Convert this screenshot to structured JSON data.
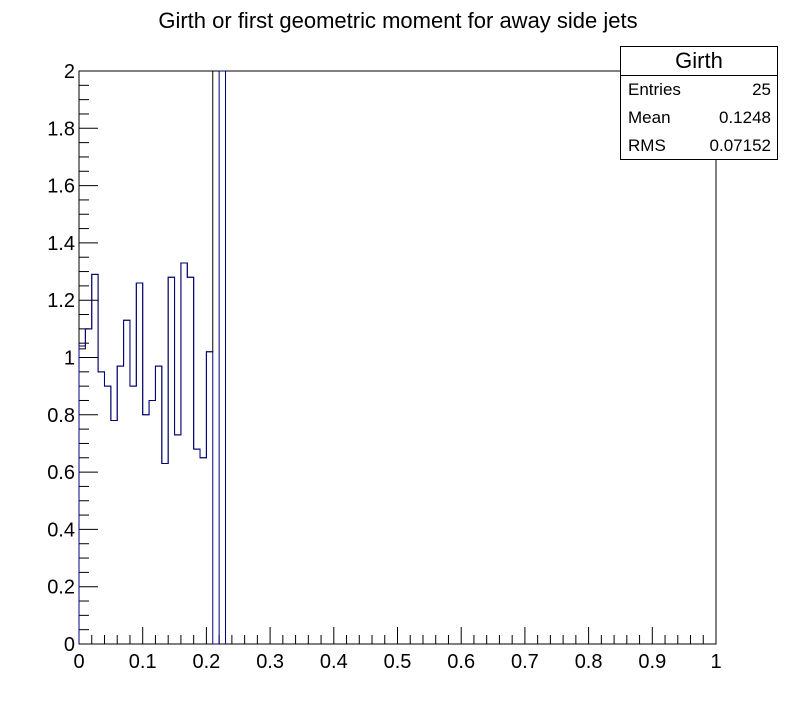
{
  "chart_data": {
    "type": "histogram",
    "title": "Girth or first geometric moment for away side jets",
    "xlabel": "",
    "ylabel": "",
    "xlim": [
      0,
      1
    ],
    "ylim": [
      0,
      2
    ],
    "x_ticks": [
      "0",
      "0.1",
      "0.2",
      "0.3",
      "0.4",
      "0.5",
      "0.6",
      "0.7",
      "0.8",
      "0.9",
      "1"
    ],
    "x_tick_values": [
      0,
      0.1,
      0.2,
      0.3,
      0.4,
      0.5,
      0.6,
      0.7,
      0.8,
      0.9,
      1
    ],
    "y_ticks": [
      "0",
      "0.2",
      "0.4",
      "0.6",
      "0.8",
      "1",
      "1.2",
      "1.4",
      "1.6",
      "1.8",
      "2"
    ],
    "y_tick_values": [
      0,
      0.2,
      0.4,
      0.6,
      0.8,
      1,
      1.2,
      1.4,
      1.6,
      1.8,
      2
    ],
    "series": [
      {
        "name": "Girth (black)",
        "color": "#000000",
        "bin_edges": [
          0,
          0.01,
          0.02,
          0.03,
          0.04,
          0.05,
          0.06,
          0.07,
          0.08,
          0.09,
          0.1,
          0.11,
          0.12,
          0.13,
          0.14,
          0.15,
          0.16,
          0.17,
          0.18,
          0.19,
          0.2,
          0.21,
          0.22,
          0.23
        ],
        "values": [
          1.03,
          1.1,
          1.29,
          0.95,
          0.9,
          0.78,
          0.97,
          1.13,
          0.9,
          1.26,
          0.8,
          0.85,
          0.97,
          0.63,
          1.28,
          0.73,
          1.33,
          1.28,
          0.68,
          0.65,
          1.02,
          2.0,
          2.0
        ]
      },
      {
        "name": "Girth (blue)",
        "color": "#00007f",
        "bin_edges": [
          0,
          0.01,
          0.02,
          0.03,
          0.04,
          0.05,
          0.06,
          0.07,
          0.08,
          0.09,
          0.1,
          0.11,
          0.12,
          0.13,
          0.14,
          0.15,
          0.16,
          0.17,
          0.18,
          0.19,
          0.2,
          0.21,
          0.22,
          0.23
        ],
        "values": [
          1.04,
          1.1,
          1.29,
          0.95,
          0.9,
          0.78,
          0.97,
          1.13,
          0.9,
          1.26,
          0.8,
          0.85,
          0.97,
          0.63,
          1.28,
          0.73,
          1.33,
          1.28,
          0.68,
          0.65,
          1.02,
          0,
          2.0
        ]
      }
    ]
  },
  "stats": {
    "title": "Girth",
    "entries_label": "Entries",
    "entries_value": "25",
    "mean_label": "Mean",
    "mean_value": "0.1248",
    "rms_label": "RMS",
    "rms_value": "0.07152"
  }
}
